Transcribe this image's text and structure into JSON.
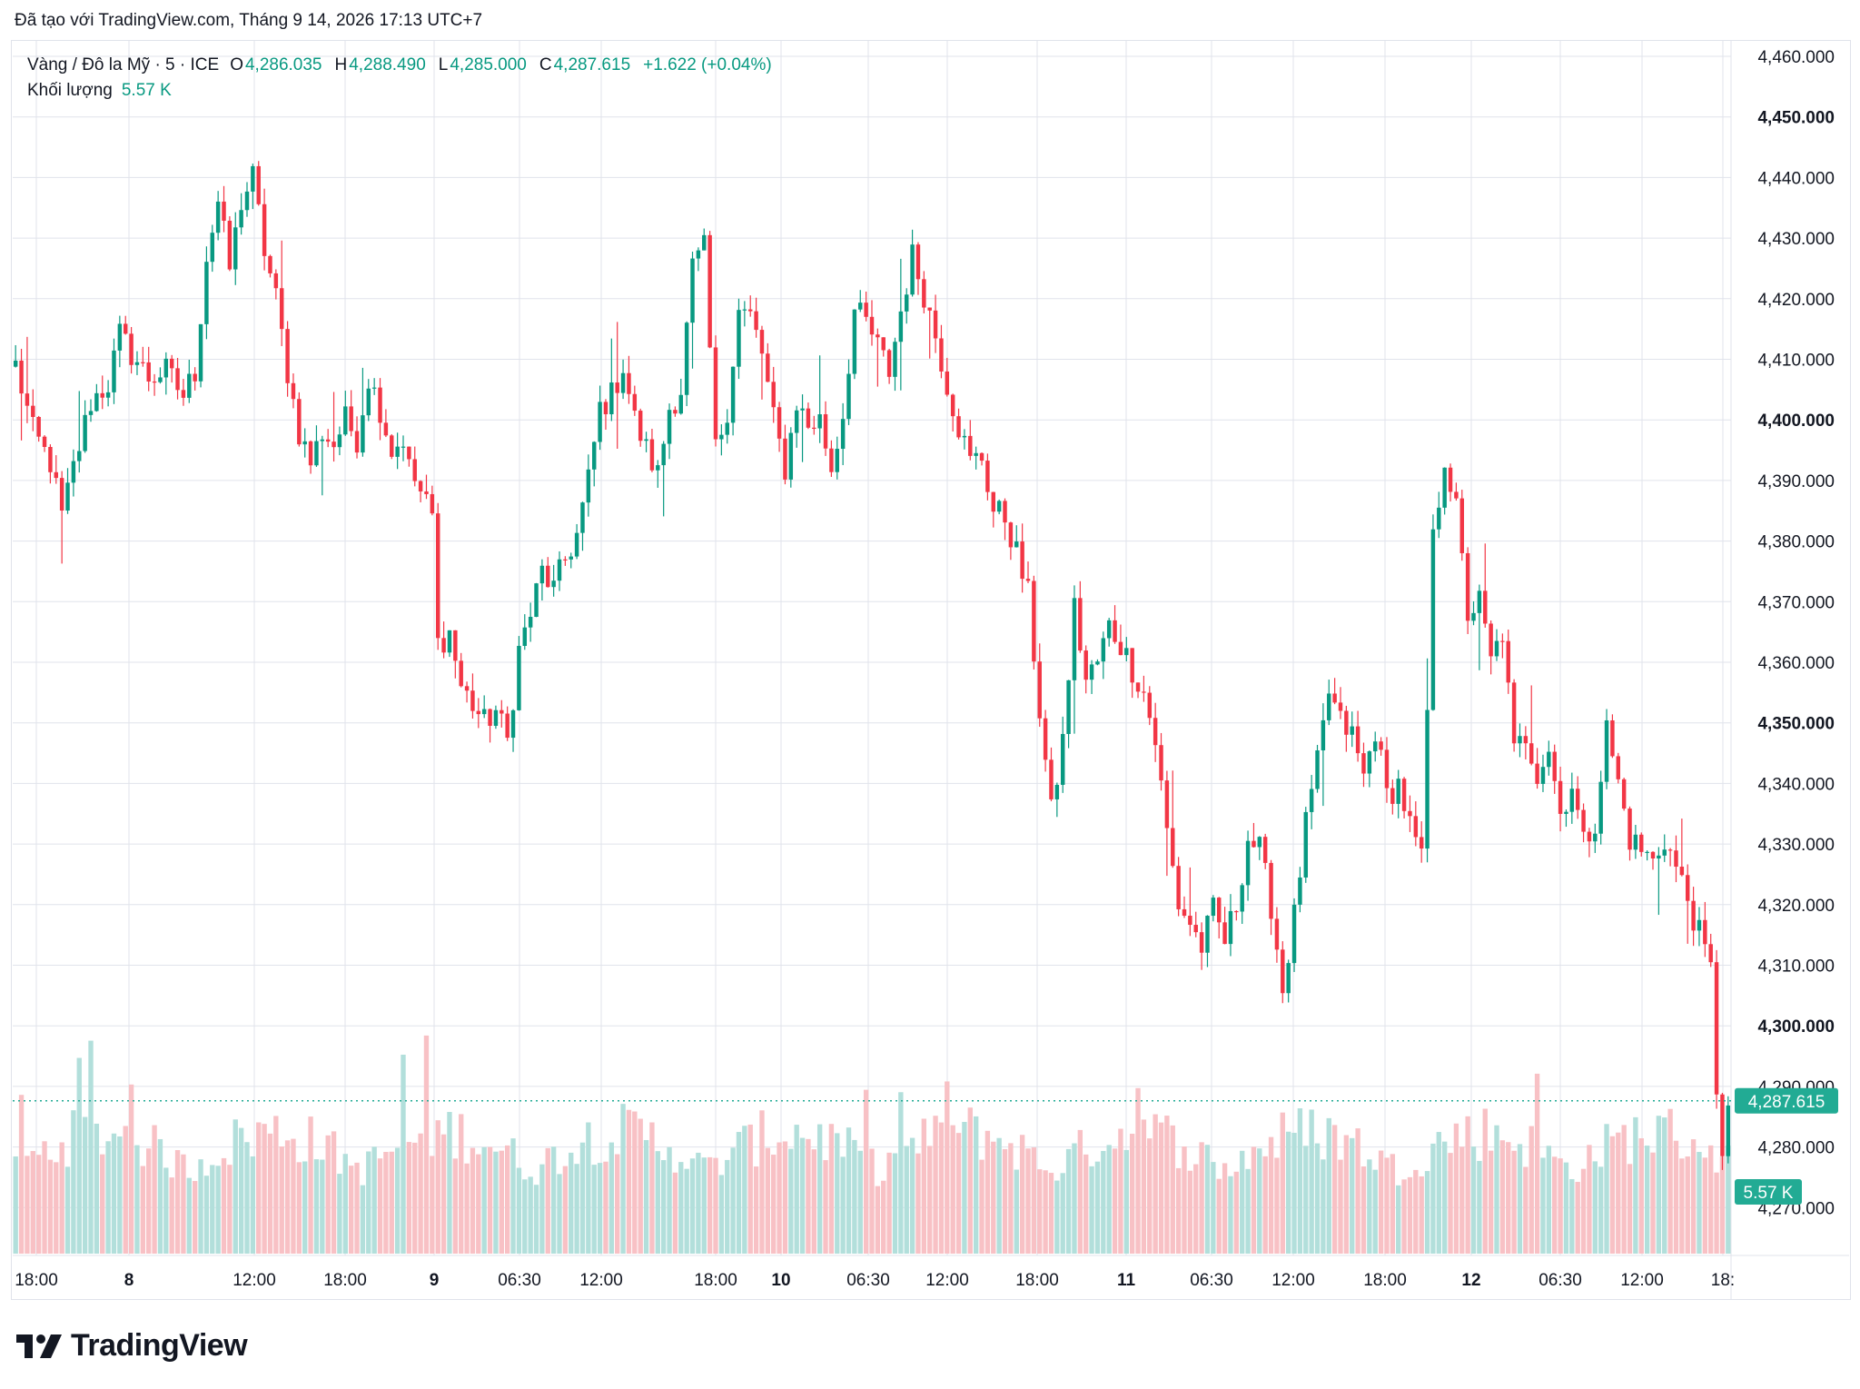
{
  "header": {
    "caption": "Đã tạo với TradingView.com, Tháng 9 14, 2026 17:13 UTC+7"
  },
  "legend": {
    "symbol": "Vàng / Đô la Mỹ · 5 · ICE",
    "open_label": "O",
    "open": "4,286.035",
    "high_label": "H",
    "high": "4,288.490",
    "low_label": "L",
    "low": "4,285.000",
    "close_label": "C",
    "close": "4,287.615",
    "change": "+1.622 (+0.04%)",
    "volume_label": "Khối lượng",
    "volume": "5.57 K"
  },
  "last_price_tag": "4,287.615",
  "volume_tag": "5.57 K",
  "brand": "TradingView",
  "colors": {
    "up": "#089981",
    "down": "#f23645",
    "grid": "#e0e3eb",
    "tag": "#22ab94"
  },
  "chart_data": {
    "type": "candlestick",
    "symbol": "Vàng / Đô la Mỹ · 5 · ICE",
    "ylim": [
      4263,
      4463
    ],
    "y_ticks": [
      "4,460.000",
      "4,450.000",
      "4,440.000",
      "4,430.000",
      "4,420.000",
      "4,410.000",
      "4,400.000",
      "4,390.000",
      "4,380.000",
      "4,370.000",
      "4,360.000",
      "4,350.000",
      "4,340.000",
      "4,330.000",
      "4,320.000",
      "4,310.000",
      "4,300.000",
      "4,290.000",
      "4,280.000",
      "4,270.000"
    ],
    "y_tick_values": [
      4460,
      4450,
      4440,
      4430,
      4420,
      4410,
      4400,
      4390,
      4380,
      4370,
      4360,
      4350,
      4340,
      4330,
      4320,
      4310,
      4300,
      4290,
      4280,
      4270
    ],
    "y_bold": [
      "4,450.000",
      "4,400.000",
      "4,350.000",
      "4,300.000"
    ],
    "x_ticks": [
      "18:00",
      "8",
      "12:00",
      "18:00",
      "9",
      "06:30",
      "12:00",
      "18:00",
      "10",
      "06:30",
      "12:00",
      "18:00",
      "11",
      "06:30",
      "12:00",
      "18:00",
      "12",
      "06:30",
      "12:00",
      "18:"
    ],
    "x_bold": [
      "8",
      "9",
      "10",
      "11",
      "12"
    ],
    "price_path": [
      [
        0,
        4409
      ],
      [
        3,
        4398
      ],
      [
        6,
        4393
      ],
      [
        8,
        4384
      ],
      [
        10,
        4392
      ],
      [
        13,
        4403
      ],
      [
        16,
        4406
      ],
      [
        18,
        4414
      ],
      [
        20,
        4411
      ],
      [
        23,
        4407
      ],
      [
        26,
        4408
      ],
      [
        29,
        4404
      ],
      [
        31,
        4408
      ],
      [
        33,
        4427
      ],
      [
        35,
        4436
      ],
      [
        37,
        4425
      ],
      [
        39,
        4436
      ],
      [
        41,
        4440
      ],
      [
        43,
        4428
      ],
      [
        45,
        4420
      ],
      [
        47,
        4408
      ],
      [
        49,
        4398
      ],
      [
        51,
        4393
      ],
      [
        53,
        4398
      ],
      [
        55,
        4396
      ],
      [
        57,
        4400
      ],
      [
        59,
        4397
      ],
      [
        61,
        4407
      ],
      [
        63,
        4402
      ],
      [
        65,
        4395
      ],
      [
        67,
        4397
      ],
      [
        68,
        4392
      ],
      [
        70,
        4388
      ],
      [
        72,
        4384
      ],
      [
        73,
        4363
      ],
      [
        75,
        4365
      ],
      [
        77,
        4356
      ],
      [
        79,
        4353
      ],
      [
        81,
        4350
      ],
      [
        83,
        4352
      ],
      [
        85,
        4347
      ],
      [
        87,
        4362
      ],
      [
        89,
        4368
      ],
      [
        91,
        4375
      ],
      [
        93,
        4372
      ],
      [
        95,
        4377
      ],
      [
        97,
        4381
      ],
      [
        99,
        4390
      ],
      [
        101,
        4402
      ],
      [
        103,
        4404
      ],
      [
        105,
        4409
      ],
      [
        107,
        4400
      ],
      [
        109,
        4395
      ],
      [
        111,
        4391
      ],
      [
        113,
        4402
      ],
      [
        115,
        4405
      ],
      [
        117,
        4425
      ],
      [
        119,
        4428
      ],
      [
        121,
        4395
      ],
      [
        123,
        4402
      ],
      [
        125,
        4418
      ],
      [
        127,
        4417
      ],
      [
        129,
        4411
      ],
      [
        131,
        4400
      ],
      [
        133,
        4392
      ],
      [
        135,
        4403
      ],
      [
        137,
        4399
      ],
      [
        139,
        4400
      ],
      [
        141,
        4392
      ],
      [
        143,
        4401
      ],
      [
        145,
        4418
      ],
      [
        147,
        4416
      ],
      [
        149,
        4412
      ],
      [
        151,
        4408
      ],
      [
        153,
        4418
      ],
      [
        155,
        4427
      ],
      [
        157,
        4421
      ],
      [
        159,
        4414
      ],
      [
        161,
        4406
      ],
      [
        163,
        4399
      ],
      [
        165,
        4393
      ],
      [
        167,
        4394
      ],
      [
        169,
        4385
      ],
      [
        171,
        4384
      ],
      [
        173,
        4378
      ],
      [
        175,
        4371
      ],
      [
        177,
        4352
      ],
      [
        179,
        4335
      ],
      [
        181,
        4347
      ],
      [
        183,
        4369
      ],
      [
        185,
        4357
      ],
      [
        187,
        4360
      ],
      [
        189,
        4366
      ],
      [
        191,
        4363
      ],
      [
        193,
        4359
      ],
      [
        195,
        4355
      ],
      [
        197,
        4347
      ],
      [
        199,
        4332
      ],
      [
        201,
        4320
      ],
      [
        203,
        4317
      ],
      [
        205,
        4313
      ],
      [
        207,
        4319
      ],
      [
        209,
        4314
      ],
      [
        211,
        4320
      ],
      [
        213,
        4331
      ],
      [
        215,
        4329
      ],
      [
        217,
        4320
      ],
      [
        219,
        4306
      ],
      [
        221,
        4318
      ],
      [
        223,
        4333
      ],
      [
        225,
        4343
      ],
      [
        227,
        4355
      ],
      [
        229,
        4350
      ],
      [
        231,
        4348
      ],
      [
        233,
        4341
      ],
      [
        235,
        4349
      ],
      [
        237,
        4338
      ],
      [
        239,
        4340
      ],
      [
        241,
        4333
      ],
      [
        243,
        4327
      ],
      [
        244,
        4352
      ],
      [
        245,
        4380
      ],
      [
        247,
        4394
      ],
      [
        249,
        4385
      ],
      [
        251,
        4368
      ],
      [
        253,
        4370
      ],
      [
        255,
        4360
      ],
      [
        257,
        4365
      ],
      [
        259,
        4345
      ],
      [
        261,
        4348
      ],
      [
        263,
        4342
      ],
      [
        265,
        4346
      ],
      [
        267,
        4335
      ],
      [
        269,
        4340
      ],
      [
        271,
        4330
      ],
      [
        273,
        4334
      ],
      [
        275,
        4349
      ],
      [
        277,
        4340
      ],
      [
        279,
        4331
      ],
      [
        281,
        4329
      ],
      [
        283,
        4327
      ],
      [
        285,
        4331
      ],
      [
        287,
        4326
      ],
      [
        289,
        4321
      ],
      [
        291,
        4315
      ],
      [
        293,
        4309
      ],
      [
        294,
        4290
      ],
      [
        295,
        4280
      ],
      [
        296,
        4286
      ]
    ],
    "n_bars": 297
  }
}
